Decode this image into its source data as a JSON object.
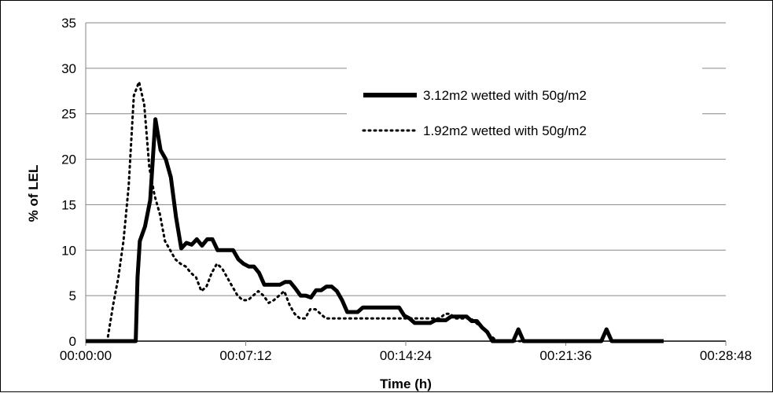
{
  "chart_data": {
    "type": "line",
    "xlabel": "Time (h)",
    "ylabel": "% of LEL",
    "xlim": [
      "00:00:00",
      "00:28:48"
    ],
    "ylim": [
      0,
      35
    ],
    "x_tick_labels": [
      "00:00:00",
      "00:07:12",
      "00:14:24",
      "00:21:36",
      "00:28:48"
    ],
    "y_tick_labels": [
      "0",
      "5",
      "10",
      "15",
      "20",
      "25",
      "30",
      "35"
    ],
    "grid": "horizontal",
    "legend_position": "top-right",
    "series": [
      {
        "name": "3.12m2 wetted with 50g/m2",
        "style": "solid",
        "color": "#000000",
        "x": [
          "00:00:00",
          "00:02:15",
          "00:02:20",
          "00:02:26",
          "00:02:40",
          "00:02:54",
          "00:03:08",
          "00:03:22",
          "00:03:36",
          "00:03:50",
          "00:04:04",
          "00:04:18",
          "00:04:32",
          "00:04:46",
          "00:05:00",
          "00:05:14",
          "00:05:28",
          "00:05:42",
          "00:05:56",
          "00:06:10",
          "00:06:24",
          "00:06:38",
          "00:06:52",
          "00:07:06",
          "00:07:20",
          "00:07:34",
          "00:07:48",
          "00:08:02",
          "00:08:16",
          "00:08:30",
          "00:08:44",
          "00:08:58",
          "00:09:12",
          "00:09:26",
          "00:09:40",
          "00:09:54",
          "00:10:08",
          "00:10:22",
          "00:10:36",
          "00:10:50",
          "00:11:04",
          "00:11:18",
          "00:11:32",
          "00:11:46",
          "00:12:00",
          "00:12:14",
          "00:12:28",
          "00:12:42",
          "00:12:56",
          "00:13:10",
          "00:13:24",
          "00:13:38",
          "00:13:52",
          "00:14:06",
          "00:14:20",
          "00:14:34",
          "00:14:48",
          "00:15:02",
          "00:15:16",
          "00:15:30",
          "00:15:44",
          "00:15:58",
          "00:16:12",
          "00:16:26",
          "00:16:40",
          "00:16:54",
          "00:17:08",
          "00:17:22",
          "00:17:36",
          "00:17:50",
          "00:18:04",
          "00:18:18",
          "00:18:32",
          "00:18:46",
          "00:19:00",
          "00:19:14",
          "00:19:28",
          "00:19:42",
          "00:19:56",
          "00:20:10",
          "00:20:24",
          "00:20:38",
          "00:20:52",
          "00:21:06",
          "00:21:20",
          "00:21:34",
          "00:21:48",
          "00:22:02",
          "00:22:16",
          "00:22:30",
          "00:22:44",
          "00:22:58",
          "00:23:12",
          "00:23:26",
          "00:23:40",
          "00:23:54",
          "00:24:08",
          "00:24:22",
          "00:24:36",
          "00:24:50",
          "00:25:04",
          "00:25:18",
          "00:25:32",
          "00:25:46",
          "00:26:00"
        ],
        "values": [
          0,
          0,
          7,
          11,
          12.6,
          15.5,
          24.4,
          21,
          20,
          18,
          13.6,
          10.2,
          10.8,
          10.6,
          11.2,
          10.5,
          11.2,
          11.2,
          10,
          10,
          10,
          10,
          9,
          8.5,
          8.2,
          8.2,
          7.5,
          6.2,
          6.2,
          6.2,
          6.2,
          6.5,
          6.5,
          5.8,
          5,
          5,
          4.8,
          5.6,
          5.6,
          6,
          6,
          5.5,
          4.5,
          3.2,
          3.2,
          3.2,
          3.7,
          3.7,
          3.7,
          3.7,
          3.7,
          3.7,
          3.7,
          3.7,
          2.8,
          2.5,
          2,
          2,
          2,
          2,
          2.3,
          2.3,
          2.3,
          2.7,
          2.7,
          2.7,
          2.7,
          2.2,
          2.2,
          1.5,
          1,
          0,
          0,
          0,
          0,
          0,
          1.3,
          0,
          0,
          0,
          0,
          0,
          0,
          0,
          0,
          0,
          0,
          0,
          0,
          0,
          0,
          0,
          0,
          1.3,
          0,
          0,
          0,
          0,
          0,
          0,
          0,
          0,
          0,
          0,
          0
        ],
        "visible_start": "00:00:00",
        "visible_end": "00:26:00"
      },
      {
        "name": "1.92m2 wetted with 50g/m2",
        "style": "dotted",
        "color": "#000000",
        "x": [
          "00:01:00",
          "00:01:14",
          "00:01:28",
          "00:01:42",
          "00:01:56",
          "00:02:10",
          "00:02:24",
          "00:02:38",
          "00:02:52",
          "00:03:06",
          "00:03:20",
          "00:03:34",
          "00:03:48",
          "00:04:02",
          "00:04:16",
          "00:04:30",
          "00:04:44",
          "00:04:58",
          "00:05:12",
          "00:05:26",
          "00:05:40",
          "00:05:54",
          "00:06:08",
          "00:06:22",
          "00:06:36",
          "00:06:50",
          "00:07:04",
          "00:07:18",
          "00:07:32",
          "00:07:46",
          "00:08:00",
          "00:08:14",
          "00:08:28",
          "00:08:42",
          "00:08:56",
          "00:09:10",
          "00:09:24",
          "00:09:38",
          "00:09:52",
          "00:10:06",
          "00:10:20",
          "00:10:34",
          "00:10:48",
          "00:11:02",
          "00:11:16",
          "00:11:30",
          "00:11:44",
          "00:11:58",
          "00:12:12",
          "00:12:26",
          "00:12:40",
          "00:12:54",
          "00:13:08",
          "00:13:22",
          "00:13:36",
          "00:13:50",
          "00:14:04",
          "00:14:18",
          "00:14:32",
          "00:14:46",
          "00:15:00",
          "00:15:14",
          "00:15:28",
          "00:15:42",
          "00:15:56",
          "00:16:10",
          "00:16:24",
          "00:16:38",
          "00:16:52",
          "00:17:06",
          "00:17:20",
          "00:17:34",
          "00:17:48",
          "00:18:02",
          "00:18:16",
          "00:18:30",
          "00:18:44",
          "00:18:58",
          "00:19:12",
          "00:19:26",
          "00:19:40"
        ],
        "values": [
          0.5,
          4,
          7,
          11,
          17,
          27,
          28.5,
          26,
          19,
          16,
          14,
          11,
          10,
          9,
          8.5,
          8.2,
          7.5,
          7,
          5.5,
          6,
          7.5,
          8.5,
          8,
          7,
          6,
          5,
          4.5,
          4.5,
          5,
          5.5,
          5,
          4.2,
          4.5,
          5,
          5.5,
          4,
          3,
          2.5,
          2.5,
          3.5,
          3.5,
          3,
          2.5,
          2.5,
          2.5,
          2.5,
          2.5,
          2.5,
          2.5,
          2.5,
          2.5,
          2.5,
          2.5,
          2.5,
          2.5,
          2.5,
          2.5,
          2.5,
          2.5,
          2.5,
          2.5,
          2.5,
          2.5,
          2.5,
          2.5,
          3,
          3,
          2.5,
          2.5,
          2.5,
          2.5,
          2,
          1.5,
          1,
          0.5,
          0,
          0,
          0,
          0,
          0,
          0
        ]
      }
    ]
  }
}
